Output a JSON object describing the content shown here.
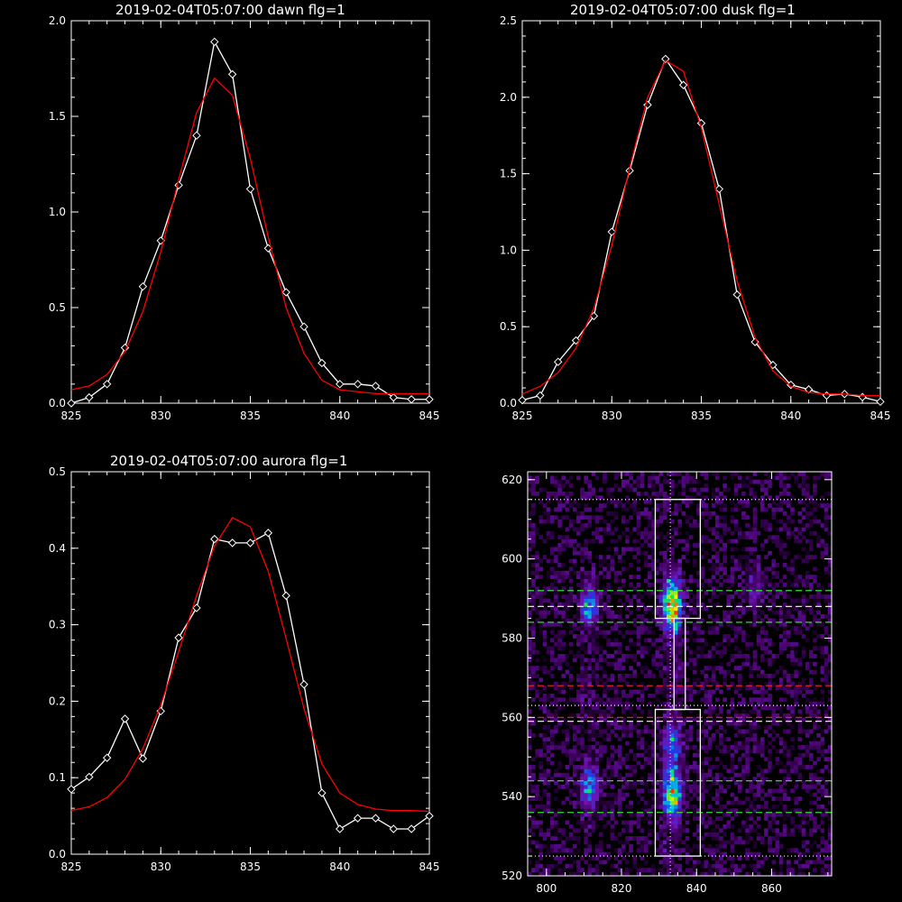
{
  "chart_data": [
    {
      "type": "line",
      "title": "2019-02-04T05:07:00 dawn flg=1",
      "xlim": [
        825,
        845
      ],
      "ylim": [
        0,
        2.0
      ],
      "xticks": [
        "825",
        "830",
        "835",
        "840",
        "845"
      ],
      "yticks": [
        "0.0",
        "0.5",
        "1.0",
        "1.5",
        "2.0"
      ],
      "series": [
        {
          "x": [
            825,
            826,
            827,
            828,
            829,
            830,
            831,
            832,
            833,
            834,
            835,
            836,
            837,
            838,
            839,
            840,
            841,
            842,
            843,
            844,
            845
          ],
          "y": [
            0.0,
            0.03,
            0.1,
            0.29,
            0.61,
            0.85,
            1.14,
            1.4,
            1.89,
            1.72,
            1.12,
            0.81,
            0.58,
            0.4,
            0.21,
            0.1,
            0.1,
            0.09,
            0.03,
            0.02,
            0.02
          ],
          "color": "#ffffff",
          "marker": "diamond"
        },
        {
          "x": [
            825,
            826,
            827,
            828,
            829,
            830,
            831,
            832,
            833,
            834,
            835,
            836,
            837,
            838,
            839,
            840,
            841,
            842,
            843,
            844,
            845
          ],
          "y": [
            0.07,
            0.09,
            0.15,
            0.27,
            0.48,
            0.79,
            1.17,
            1.52,
            1.7,
            1.61,
            1.28,
            0.87,
            0.5,
            0.26,
            0.12,
            0.07,
            0.06,
            0.05,
            0.05,
            0.05,
            0.05
          ],
          "color": "#ff0000",
          "marker": "none"
        }
      ]
    },
    {
      "type": "line",
      "title": "2019-02-04T05:07:00 dusk flg=1",
      "xlim": [
        825,
        845
      ],
      "ylim": [
        0,
        2.5
      ],
      "xticks": [
        "825",
        "830",
        "835",
        "840",
        "845"
      ],
      "yticks": [
        "0.0",
        "0.5",
        "1.0",
        "1.5",
        "2.0",
        "2.5"
      ],
      "series": [
        {
          "x": [
            825,
            826,
            827,
            828,
            829,
            830,
            831,
            832,
            833,
            834,
            835,
            836,
            837,
            838,
            839,
            840,
            841,
            842,
            843,
            844,
            845
          ],
          "y": [
            0.02,
            0.05,
            0.27,
            0.41,
            0.57,
            1.12,
            1.52,
            1.95,
            2.25,
            2.08,
            1.83,
            1.4,
            0.71,
            0.4,
            0.25,
            0.12,
            0.09,
            0.05,
            0.06,
            0.04,
            0.01
          ],
          "color": "#ffffff",
          "marker": "diamond"
        },
        {
          "x": [
            825,
            826,
            827,
            828,
            829,
            830,
            831,
            832,
            833,
            834,
            835,
            836,
            837,
            838,
            839,
            840,
            841,
            842,
            843,
            844,
            845
          ],
          "y": [
            0.06,
            0.11,
            0.2,
            0.36,
            0.62,
            1.03,
            1.54,
            2.0,
            2.24,
            2.17,
            1.8,
            1.3,
            0.8,
            0.43,
            0.21,
            0.11,
            0.07,
            0.06,
            0.06,
            0.05,
            0.05
          ],
          "color": "#ff0000",
          "marker": "none"
        }
      ]
    },
    {
      "type": "line",
      "title": "2019-02-04T05:07:00 aurora flg=1",
      "xlim": [
        825,
        845
      ],
      "ylim": [
        0,
        0.5
      ],
      "xticks": [
        "825",
        "830",
        "835",
        "840",
        "845"
      ],
      "yticks": [
        "0.0",
        "0.1",
        "0.2",
        "0.3",
        "0.4",
        "0.5"
      ],
      "series": [
        {
          "x": [
            825,
            826,
            827,
            828,
            829,
            830,
            831,
            832,
            833,
            834,
            835,
            836,
            837,
            838,
            839,
            840,
            841,
            842,
            843,
            844,
            845
          ],
          "y": [
            0.085,
            0.101,
            0.126,
            0.177,
            0.125,
            0.187,
            0.283,
            0.322,
            0.412,
            0.407,
            0.407,
            0.42,
            0.338,
            0.222,
            0.08,
            0.033,
            0.047,
            0.047,
            0.033,
            0.033,
            0.05
          ],
          "color": "#ffffff",
          "marker": "diamond"
        },
        {
          "x": [
            825,
            826,
            827,
            828,
            829,
            830,
            831,
            832,
            833,
            834,
            835,
            836,
            837,
            838,
            839,
            840,
            841,
            842,
            843,
            844,
            845
          ],
          "y": [
            0.057,
            0.062,
            0.074,
            0.098,
            0.138,
            0.195,
            0.265,
            0.338,
            0.403,
            0.44,
            0.428,
            0.37,
            0.282,
            0.19,
            0.118,
            0.08,
            0.065,
            0.059,
            0.057,
            0.057,
            0.056
          ],
          "color": "#ff0000",
          "marker": "none"
        }
      ]
    },
    {
      "type": "heatmap",
      "xlim": [
        795,
        876
      ],
      "ylim": [
        520,
        622
      ],
      "xticks": [
        "800",
        "820",
        "840",
        "860"
      ],
      "yticks": [
        "520",
        "540",
        "560",
        "580",
        "600",
        "620"
      ],
      "bright_regions": [
        {
          "x": 811,
          "y": 588,
          "intensity": 0.55
        },
        {
          "x": 833,
          "y": 588,
          "intensity": 1.0
        },
        {
          "x": 811,
          "y": 542,
          "intensity": 0.55
        },
        {
          "x": 833,
          "y": 541,
          "intensity": 0.85
        },
        {
          "x": 833,
          "y": 553,
          "intensity": 0.45
        },
        {
          "x": 855,
          "y": 592,
          "intensity": 0.25
        }
      ],
      "vline_x": 833,
      "boxes": [
        {
          "x0": 829,
          "x1": 841,
          "y0": 585,
          "y1": 615
        },
        {
          "x0": 829,
          "x1": 841,
          "y0": 525,
          "y1": 562
        },
        {
          "x0": 834,
          "x1": 837,
          "y0": 562,
          "y1": 585
        }
      ],
      "hlines": [
        {
          "y": 615,
          "color": "#ffffff",
          "style": "dotted"
        },
        {
          "y": 592,
          "color": "#33dd33",
          "style": "dashed"
        },
        {
          "y": 588,
          "color": "#ffffff",
          "style": "dashed"
        },
        {
          "y": 584,
          "color": "#33dd33",
          "style": "dashed"
        },
        {
          "y": 568,
          "color": "#ff2222",
          "style": "dashed"
        },
        {
          "y": 563,
          "color": "#ffffff",
          "style": "dotted"
        },
        {
          "y": 560,
          "color": "#ff2222",
          "style": "dashed"
        },
        {
          "y": 559,
          "color": "#ffffff",
          "style": "dashed"
        },
        {
          "y": 544,
          "color": "#33dd33",
          "style": "dashed"
        },
        {
          "y": 536,
          "color": "#33dd33",
          "style": "dashed"
        },
        {
          "y": 525,
          "color": "#ffffff",
          "style": "dotted"
        }
      ]
    }
  ]
}
